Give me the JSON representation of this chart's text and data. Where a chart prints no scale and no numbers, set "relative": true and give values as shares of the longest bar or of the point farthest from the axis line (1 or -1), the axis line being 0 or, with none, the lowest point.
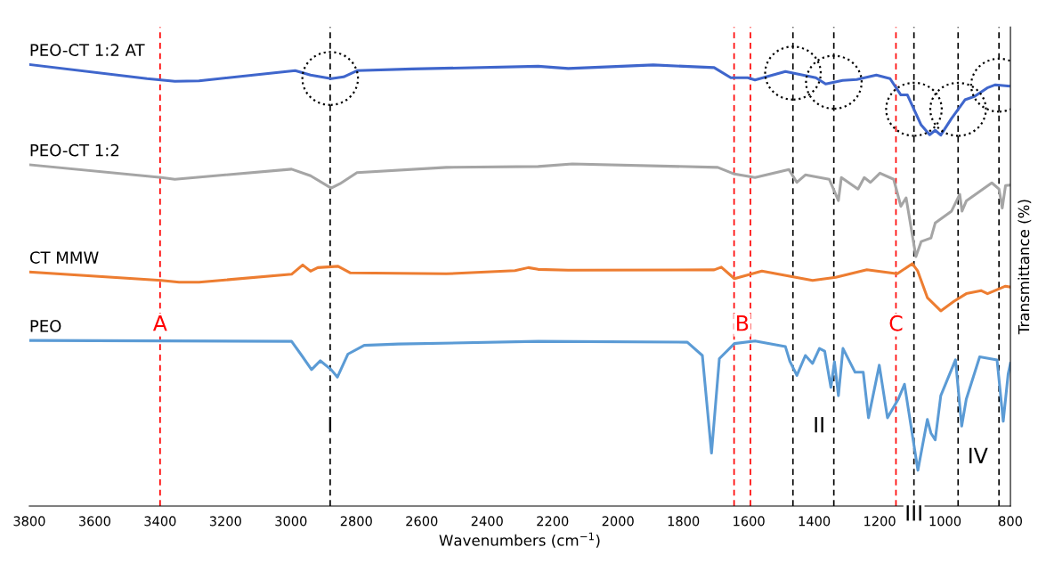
{
  "chart_data": {
    "type": "line",
    "relative": true,
    "xlabel": "Wavenumbers (cm$^{−1}$)",
    "ylabel": "Transmittance (%)",
    "xlim": [
      3800,
      800
    ],
    "xticks": [
      3800,
      3600,
      3400,
      3200,
      3000,
      2800,
      2600,
      2400,
      2200,
      2000,
      1800,
      1600,
      1400,
      1200,
      1000,
      800
    ],
    "grid": false,
    "legend": false,
    "marker": "none",
    "line_style": "solid",
    "series": [
      {
        "name": "PEO-CT 1:2 AT",
        "color": "#3f66cc",
        "x": [
          3800,
          3440,
          3355,
          3281,
          2987,
          2940,
          2877,
          2839,
          2798,
          2629,
          2244,
          2152,
          1892,
          1706,
          1655,
          1603,
          1581,
          1488,
          1395,
          1365,
          1313,
          1270,
          1210,
          1168,
          1135,
          1115,
          1073,
          1047,
          1030,
          1013,
          980,
          939,
          909,
          871,
          846,
          805
        ],
        "values": [
          1.0,
          0.968,
          0.962,
          0.963,
          0.986,
          0.976,
          0.968,
          0.972,
          0.986,
          0.99,
          0.996,
          0.991,
          0.999,
          0.993,
          0.97,
          0.97,
          0.965,
          0.984,
          0.97,
          0.956,
          0.964,
          0.966,
          0.976,
          0.968,
          0.931,
          0.931,
          0.863,
          0.841,
          0.851,
          0.84,
          0.878,
          0.92,
          0.928,
          0.947,
          0.954,
          0.951
        ]
      },
      {
        "name": "PEO-CT 1:2",
        "color": "#a5a5a5",
        "x": [
          3800,
          3396,
          3355,
          2998,
          2940,
          2877,
          2850,
          2798,
          2525,
          2244,
          2140,
          1695,
          1644,
          1581,
          1477,
          1453,
          1427,
          1354,
          1326,
          1317,
          1266,
          1247,
          1228,
          1199,
          1157,
          1135,
          1119,
          1089,
          1073,
          1043,
          1030,
          980,
          955,
          948,
          935,
          857,
          835,
          825,
          815,
          800
        ],
        "values": [
          0.773,
          0.744,
          0.74,
          0.763,
          0.748,
          0.72,
          0.73,
          0.755,
          0.767,
          0.769,
          0.775,
          0.767,
          0.752,
          0.744,
          0.762,
          0.733,
          0.75,
          0.74,
          0.692,
          0.744,
          0.718,
          0.744,
          0.733,
          0.754,
          0.74,
          0.679,
          0.698,
          0.565,
          0.599,
          0.607,
          0.641,
          0.668,
          0.706,
          0.668,
          0.691,
          0.732,
          0.718,
          0.675,
          0.726,
          0.727
        ]
      },
      {
        "name": "CT MMW",
        "color": "#ed7d31",
        "x": [
          3800,
          3396,
          3342,
          3281,
          2998,
          2964,
          2940,
          2918,
          2856,
          2818,
          2525,
          2315,
          2274,
          2244,
          2152,
          1706,
          1684,
          1644,
          1560,
          1405,
          1334,
          1239,
          1146,
          1100,
          1084,
          1054,
          1013,
          972,
          935,
          890,
          870,
          815,
          800
        ],
        "values": [
          0.53,
          0.511,
          0.507,
          0.507,
          0.525,
          0.546,
          0.532,
          0.54,
          0.543,
          0.528,
          0.526,
          0.533,
          0.54,
          0.536,
          0.534,
          0.535,
          0.541,
          0.515,
          0.532,
          0.511,
          0.518,
          0.535,
          0.526,
          0.549,
          0.533,
          0.472,
          0.442,
          0.464,
          0.481,
          0.488,
          0.481,
          0.498,
          0.496
        ]
      },
      {
        "name": "PEO",
        "color": "#5b9bd5",
        "x": [
          3800,
          2998,
          2967,
          2937,
          2910,
          2877,
          2858,
          2826,
          2776,
          2672,
          2244,
          1788,
          1742,
          1714,
          1690,
          1644,
          1581,
          1488,
          1474,
          1453,
          1427,
          1405,
          1384,
          1368,
          1349,
          1338,
          1326,
          1312,
          1275,
          1250,
          1234,
          1201,
          1176,
          1143,
          1124,
          1083,
          1054,
          1043,
          1030,
          1013,
          968,
          949,
          935,
          894,
          841,
          822,
          807,
          800
        ],
        "values": [
          0.375,
          0.373,
          0.341,
          0.309,
          0.329,
          0.309,
          0.292,
          0.344,
          0.364,
          0.367,
          0.373,
          0.371,
          0.341,
          0.12,
          0.334,
          0.368,
          0.374,
          0.361,
          0.327,
          0.296,
          0.341,
          0.323,
          0.357,
          0.351,
          0.269,
          0.327,
          0.25,
          0.357,
          0.303,
          0.303,
          0.2,
          0.319,
          0.2,
          0.242,
          0.276,
          0.081,
          0.196,
          0.165,
          0.15,
          0.25,
          0.331,
          0.181,
          0.242,
          0.338,
          0.331,
          0.192,
          0.299,
          0.323
        ]
      }
    ],
    "ref_lines": [
      {
        "axis": "x",
        "value": 3400,
        "color": "#ff0000",
        "line_style": "dashed"
      },
      {
        "axis": "x",
        "value": 1645,
        "color": "#ff0000",
        "line_style": "dashed"
      },
      {
        "axis": "x",
        "value": 1595,
        "color": "#ff0000",
        "line_style": "dashed"
      },
      {
        "axis": "x",
        "value": 1150,
        "color": "#ff0000",
        "line_style": "dashed"
      },
      {
        "axis": "x",
        "value": 2880,
        "color": "#000000",
        "line_style": "dashed"
      },
      {
        "axis": "x",
        "value": 1465,
        "color": "#000000",
        "line_style": "dashed"
      },
      {
        "axis": "x",
        "value": 1340,
        "color": "#000000",
        "line_style": "dashed"
      },
      {
        "axis": "x",
        "value": 1095,
        "color": "#000000",
        "line_style": "dashed"
      },
      {
        "axis": "x",
        "value": 960,
        "color": "#000000",
        "line_style": "dashed"
      },
      {
        "axis": "x",
        "value": 835,
        "color": "#000000",
        "line_style": "dashed"
      }
    ],
    "annotations": [
      {
        "text": "A",
        "x": 3400,
        "y": 0.41
      },
      {
        "text": "B",
        "x": 1620,
        "y": 0.41
      },
      {
        "text": "C",
        "x": 1150,
        "y": 0.41
      },
      {
        "text": "I",
        "x": 2880,
        "y": 0.18
      },
      {
        "text": "II",
        "x": 1385,
        "y": 0.18
      },
      {
        "text": "III",
        "x": 1095,
        "y": -0.02
      },
      {
        "text": "IV",
        "x": 900,
        "y": 0.11
      }
    ]
  }
}
